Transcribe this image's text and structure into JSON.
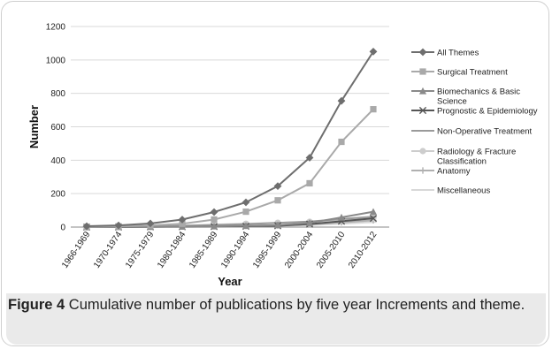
{
  "chart_data": {
    "type": "line",
    "xlabel": "Year",
    "ylabel": "Number",
    "ylim": [
      0,
      1200
    ],
    "y_ticks": [
      0,
      200,
      400,
      600,
      800,
      1000,
      1200
    ],
    "categories": [
      "1966-1969",
      "1970-1974",
      "1975-1979",
      "1980-1984",
      "1985-1989",
      "1990-1994",
      "1995-1999",
      "2000-2004",
      "2005-2010",
      "2010-2012"
    ],
    "legend_position": "right",
    "grid": "horizontal",
    "series": [
      {
        "name": "All Themes",
        "color": "#6e6e6e",
        "marker": "diamond",
        "values": [
          5,
          10,
          22,
          45,
          90,
          148,
          245,
          415,
          755,
          1050
        ]
      },
      {
        "name": "Surgical Treatment",
        "color": "#a9a9a9",
        "marker": "square",
        "values": [
          2,
          4,
          10,
          20,
          45,
          92,
          160,
          262,
          510,
          705
        ]
      },
      {
        "name": "Biomechanics & Basic Science",
        "color": "#8a8a8a",
        "marker": "triangle",
        "values": [
          0,
          1,
          2,
          3,
          5,
          8,
          12,
          25,
          58,
          92
        ]
      },
      {
        "name": "Prognostic & Epidemiology",
        "color": "#555555",
        "marker": "x",
        "values": [
          0,
          0,
          1,
          2,
          3,
          5,
          8,
          18,
          35,
          52
        ]
      },
      {
        "name": "Non-Operative Treatment",
        "color": "#9a9a9a",
        "marker": "line",
        "values": [
          1,
          2,
          4,
          8,
          12,
          18,
          25,
          33,
          48,
          62
        ]
      },
      {
        "name": "Radiology & Fracture Classification",
        "color": "#cdcdcd",
        "marker": "circle",
        "values": [
          0,
          1,
          3,
          8,
          15,
          20,
          26,
          32,
          42,
          55
        ]
      },
      {
        "name": "Anatomy",
        "color": "#b0b0b0",
        "marker": "plus",
        "values": [
          0,
          1,
          2,
          3,
          5,
          7,
          10,
          16,
          28,
          40
        ]
      },
      {
        "name": "Miscellaneous",
        "color": "#d8d8d8",
        "marker": "line",
        "values": [
          0,
          0,
          1,
          2,
          3,
          5,
          8,
          12,
          20,
          30
        ]
      }
    ]
  },
  "caption": {
    "figure_label": "Figure 4",
    "text": " Cumulative number of publications by five year Increments and theme."
  }
}
